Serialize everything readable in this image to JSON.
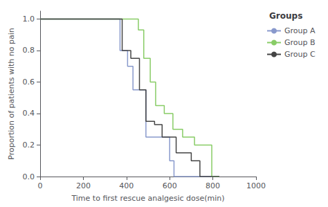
{
  "chart_data": {
    "type": "line",
    "xlabel": "Time to first rescue analgesic dose(min)",
    "ylabel": "Proportion of patients with no pain",
    "xlim": [
      0,
      1000
    ],
    "ylim": [
      0.0,
      1.05
    ],
    "xticks": [
      0,
      200,
      400,
      600,
      800,
      1000
    ],
    "yticks": [
      {
        "value": 0.0,
        "label": "0.0"
      },
      0.2,
      0.4,
      0.6,
      0.8,
      {
        "value": 1.0,
        "label": "1.0"
      }
    ],
    "grid": false,
    "legend": "right",
    "legend_title": "Groups",
    "series": [
      {
        "name": "Group A",
        "color": "#8899cc",
        "x": [
          0,
          370,
          370,
          405,
          405,
          430,
          430,
          490,
          490,
          600,
          600,
          620,
          620,
          830
        ],
        "values": [
          1.0,
          1.0,
          0.8,
          0.8,
          0.7,
          0.7,
          0.55,
          0.55,
          0.25,
          0.25,
          0.1,
          0.1,
          0.0,
          0.0
        ]
      },
      {
        "name": "Group B",
        "color": "#88cc66",
        "x": [
          0,
          455,
          455,
          480,
          480,
          510,
          510,
          535,
          535,
          575,
          575,
          615,
          615,
          660,
          660,
          715,
          715,
          795,
          795,
          830
        ],
        "values": [
          1.0,
          1.0,
          0.93,
          0.93,
          0.75,
          0.75,
          0.6,
          0.6,
          0.45,
          0.45,
          0.4,
          0.4,
          0.3,
          0.3,
          0.25,
          0.25,
          0.2,
          0.2,
          0.0,
          0.0
        ]
      },
      {
        "name": "Group C",
        "color": "#444444",
        "x": [
          0,
          380,
          380,
          420,
          420,
          460,
          460,
          490,
          490,
          530,
          530,
          565,
          565,
          630,
          630,
          700,
          700,
          740,
          740,
          800,
          800,
          830
        ],
        "values": [
          1.0,
          1.0,
          0.8,
          0.8,
          0.75,
          0.75,
          0.55,
          0.55,
          0.35,
          0.35,
          0.33,
          0.33,
          0.25,
          0.25,
          0.15,
          0.15,
          0.1,
          0.1,
          0.0,
          0.0,
          0.0,
          0.0
        ]
      }
    ]
  }
}
